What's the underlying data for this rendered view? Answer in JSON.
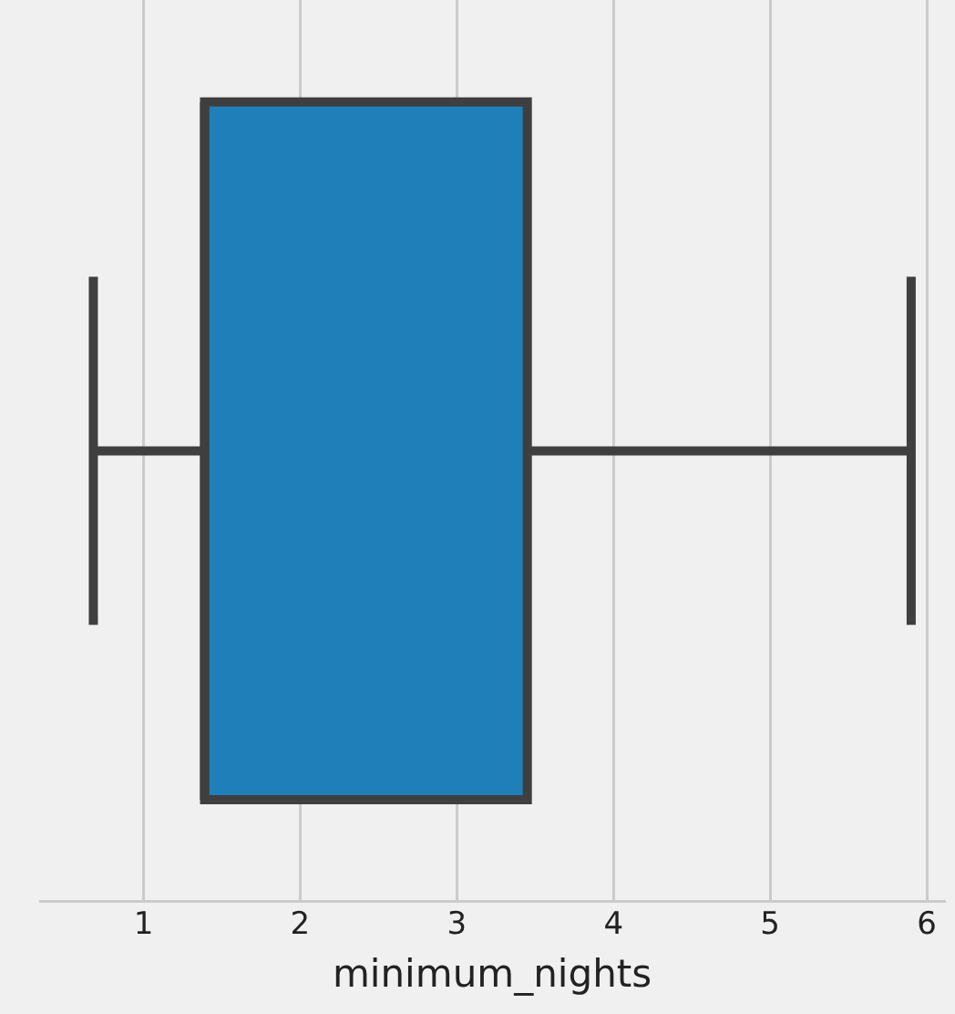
{
  "chart_data": {
    "type": "box",
    "orientation": "horizontal",
    "xlabel": "minimum_nights",
    "categories": [
      null
    ],
    "color": "#1f7fb8",
    "boxes": [
      {
        "low": 0.68,
        "q1": 1.39,
        "median": 1.39,
        "q3": 3.45,
        "high": 5.9
      }
    ],
    "xlim": [
      0.34,
      6.11
    ],
    "xticks": [
      1,
      2,
      3,
      4,
      5,
      6
    ],
    "grid": "x"
  }
}
